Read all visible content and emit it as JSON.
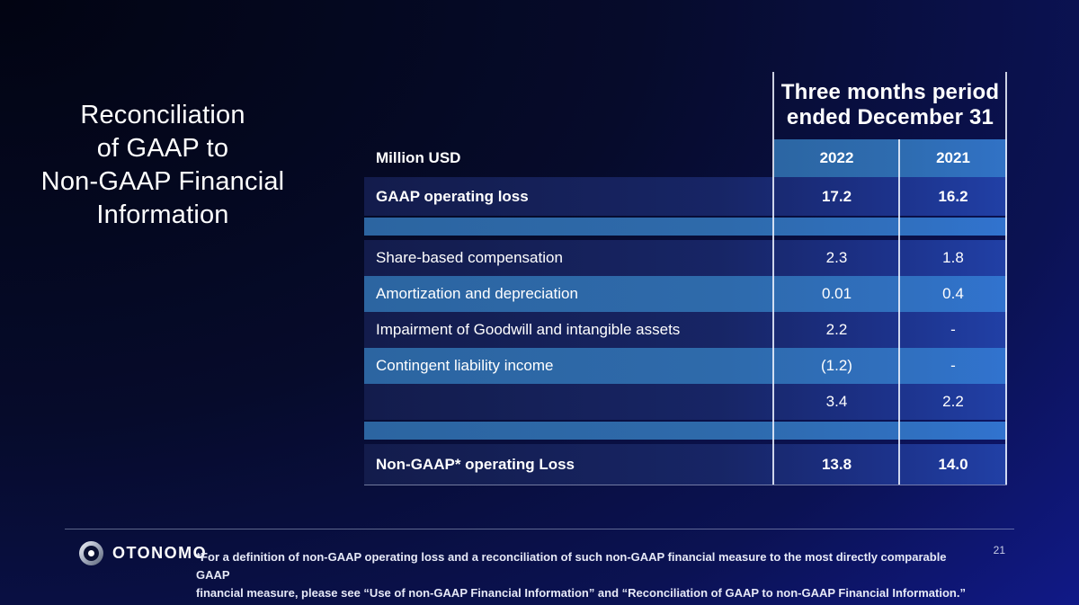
{
  "slide": {
    "title": "Reconciliation\nof GAAP to\nNon-GAAP Financial\nInformation"
  },
  "table": {
    "header": {
      "period": "Three months period\nended December 31",
      "unit_label": "Million USD",
      "year_columns": [
        "2022",
        "2021"
      ]
    },
    "rows": [
      {
        "label": "GAAP operating loss",
        "values": [
          "17.2",
          "16.2"
        ],
        "style": "dark",
        "bold": true
      },
      {
        "label": "",
        "values": [
          "",
          ""
        ],
        "style": "spacer",
        "bold": false
      },
      {
        "label": "Share-based compensation",
        "values": [
          "2.3",
          "1.8"
        ],
        "style": "dark",
        "bold": false
      },
      {
        "label": "Amortization and depreciation",
        "values": [
          "0.01",
          "0.4"
        ],
        "style": "light",
        "bold": false
      },
      {
        "label": "Impairment of Goodwill and intangible assets",
        "values": [
          "2.2",
          "-"
        ],
        "style": "dark",
        "bold": false
      },
      {
        "label": "Contingent liability income",
        "values": [
          "(1.2)",
          "-"
        ],
        "style": "light",
        "bold": false
      },
      {
        "label": "",
        "values": [
          "3.4",
          "2.2"
        ],
        "style": "dark",
        "bold": false
      },
      {
        "label": "",
        "values": [
          "",
          ""
        ],
        "style": "spacer",
        "bold": false
      },
      {
        "label": "Non-GAAP* operating Loss",
        "values": [
          "13.8",
          "14.0"
        ],
        "style": "dark",
        "bold": true
      }
    ]
  },
  "footer": {
    "logo_text": "OTONOMO",
    "footnote": "*For a definition of non-GAAP operating loss and a reconciliation of such non-GAAP financial measure to the most directly comparable GAAP\nfinancial measure, please see “Use of non-GAAP Financial Information” and “Reconciliation of GAAP to non-GAAP Financial Information.”",
    "page_number": "21"
  },
  "colors": {
    "background_top_left": "#020412",
    "background_bottom_right": "#1a1fd6",
    "dark_row": "#172565",
    "light_row": "#2e6aab",
    "year_header_band": "#2e6cb0",
    "text": "#ffffff"
  }
}
